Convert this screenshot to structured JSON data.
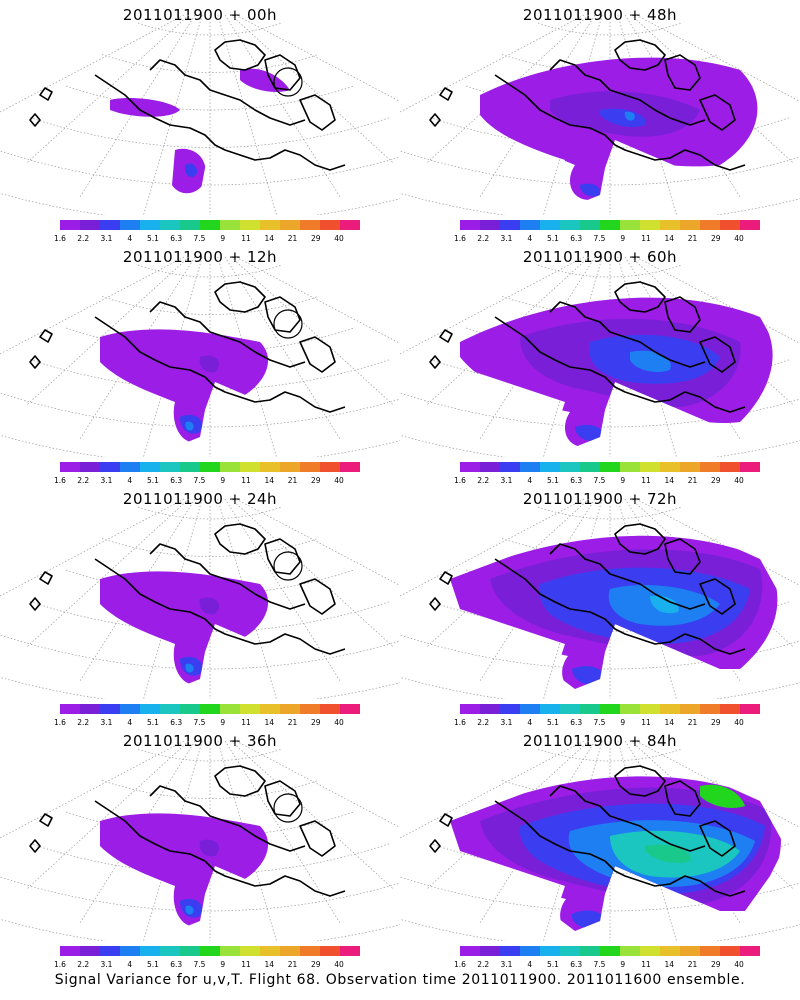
{
  "panels": [
    {
      "title": "2011011900 + 00h",
      "level": 0
    },
    {
      "title": "2011011900 + 48h",
      "level": 2
    },
    {
      "title": "2011011900 + 12h",
      "level": 1
    },
    {
      "title": "2011011900 + 60h",
      "level": 3
    },
    {
      "title": "2011011900 + 24h",
      "level": 1
    },
    {
      "title": "2011011900 + 72h",
      "level": 4
    },
    {
      "title": "2011011900 + 36h",
      "level": 1
    },
    {
      "title": "2011011900 + 84h",
      "level": 5
    }
  ],
  "colorbar": {
    "colors": [
      "#9b1de6",
      "#7a1fd8",
      "#3b3ef0",
      "#1e7ff2",
      "#18b1ee",
      "#1bc6c0",
      "#19c98b",
      "#22d61e",
      "#98e23a",
      "#cfe02e",
      "#e8c12a",
      "#eca62a",
      "#f07c2a",
      "#f0502e",
      "#ec1c7c"
    ],
    "ticks": [
      "1.6",
      "2.2",
      "3.1",
      "4",
      "5.1",
      "6.3",
      "7.5",
      "9",
      "11",
      "14",
      "21",
      "29",
      "40"
    ]
  },
  "caption": "Signal Variance for u,v,T. Flight 68. Observation time 2011011900. 2011011600 ensemble."
}
